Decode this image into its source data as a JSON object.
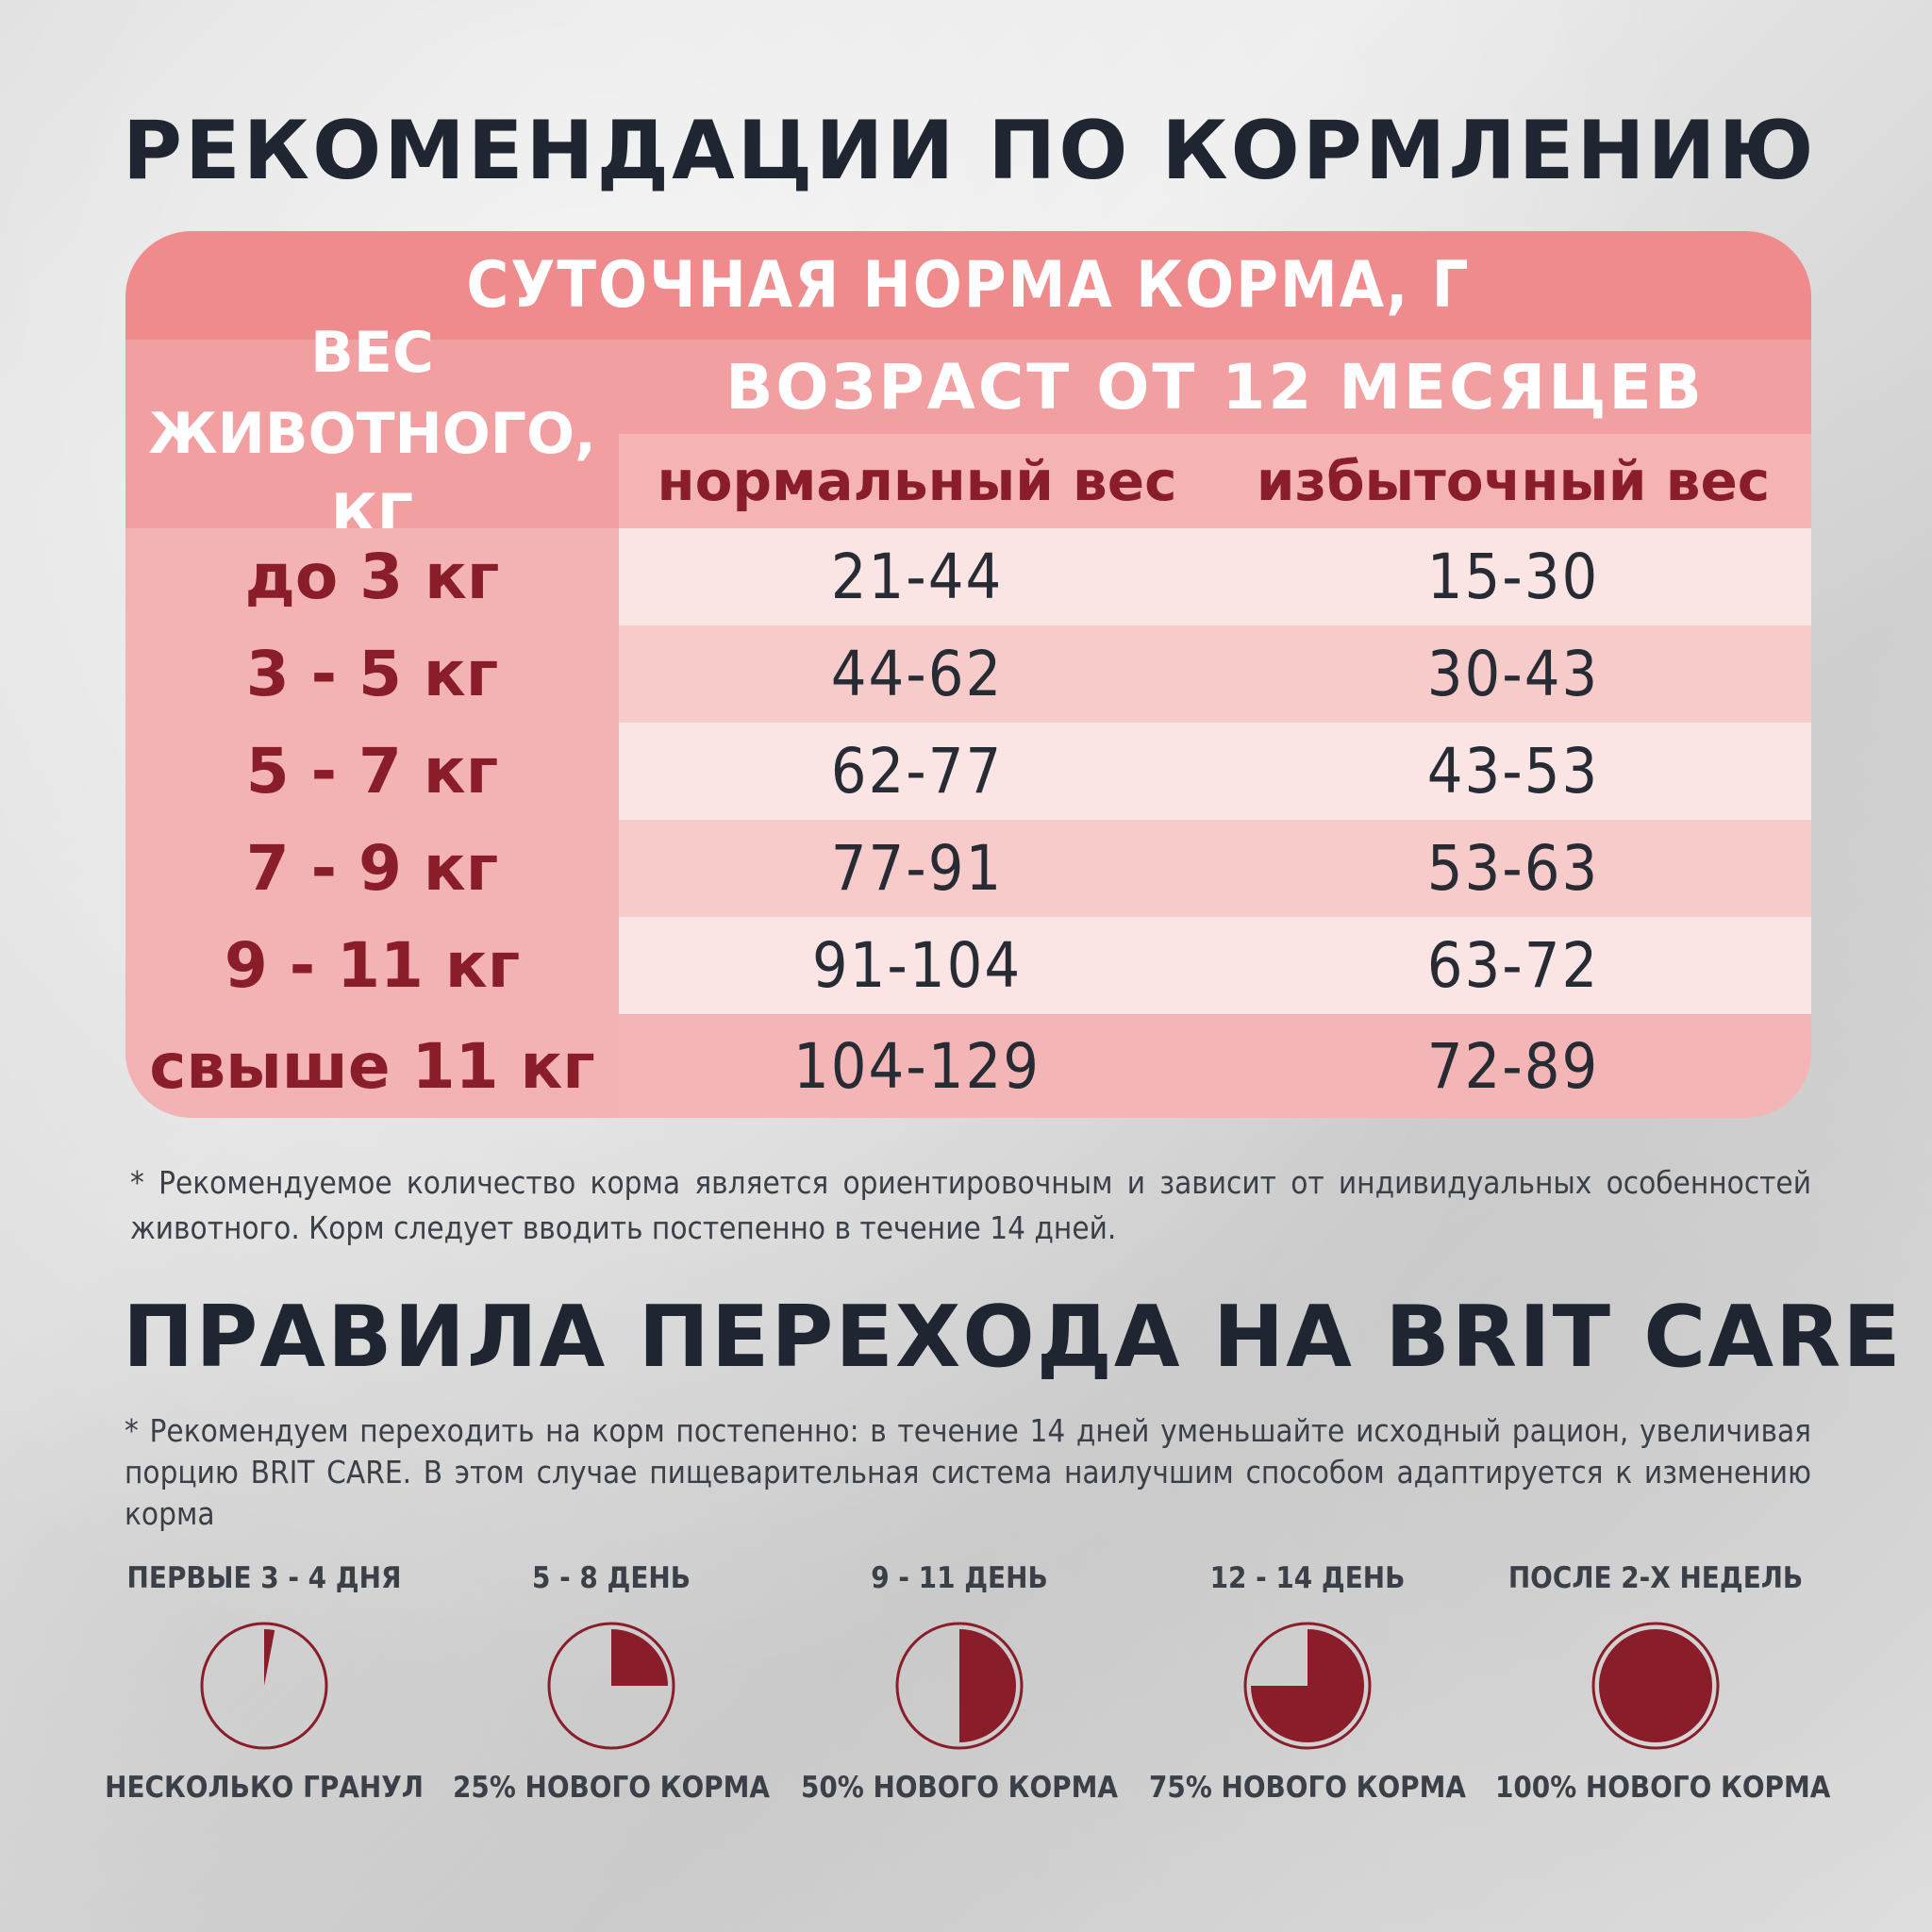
{
  "title": "РЕКОМЕНДАЦИИ ПО КОРМЛЕНИЮ",
  "table": {
    "caption": "СУТОЧНАЯ НОРМА КОРМА, Г",
    "weight_header": "ВЕС ЖИВОТНОГО, КГ",
    "age_header": "ВОЗРАСТ ОТ 12 МЕСЯЦЕВ",
    "normal_header": "нормальный вес",
    "over_header": "избыточный вес",
    "rows": [
      {
        "weight": "до 3 кг",
        "normal": "21-44",
        "over": "15-30"
      },
      {
        "weight": "3 - 5 кг",
        "normal": "44-62",
        "over": "30-43"
      },
      {
        "weight": "5 - 7 кг",
        "normal": "62-77",
        "over": "43-53"
      },
      {
        "weight": "7 - 9 кг",
        "normal": "77-91",
        "over": "53-63"
      },
      {
        "weight": "9 - 11 кг",
        "normal": "91-104",
        "over": "63-72"
      },
      {
        "weight": "свыше 11 кг",
        "normal": "104-129",
        "over": "72-89"
      }
    ]
  },
  "note1": "* Рекомендуемое количество корма является ориентировочным и зависит от индивидуальных особенностей животного. Корм следует вводить постепенно в течение 14 дней.",
  "transition": {
    "title": "ПРАВИЛА ПЕРЕХОДА НА BRIT CARE",
    "note": "* Рекомендуем переходить на корм постепенно: в течение 14 дней уменьшайте исходный рацион, увеличивая порцию BRIT CARE. В этом случае пищеварительная система наилучшим способом адаптируется к изменению корма",
    "stages": [
      {
        "label": "ПЕРВЫЕ 3 - 4 ДНЯ",
        "caption": "НЕСКОЛЬКО ГРАНУЛ",
        "fraction": 0.03
      },
      {
        "label": "5 - 8 ДЕНЬ",
        "caption": "25% НОВОГО КОРМА",
        "fraction": 0.25
      },
      {
        "label": "9 - 11 ДЕНЬ",
        "caption": "50% НОВОГО КОРМА",
        "fraction": 0.5
      },
      {
        "label": "12 - 14 ДЕНЬ",
        "caption": "75% НОВОГО КОРМА",
        "fraction": 0.75
      },
      {
        "label": "ПОСЛЕ 2-Х НЕДЕЛЬ",
        "caption": "100% НОВОГО КОРМА",
        "fraction": 1.0
      }
    ]
  },
  "colors": {
    "accent": "#8a1d2a",
    "table_caption_bg": "#ef8a8d",
    "header_bg": "#f29fa1",
    "row_light": "#fbe4e4",
    "row_dark": "#f8cbcb",
    "title_text": "#1f2632"
  }
}
